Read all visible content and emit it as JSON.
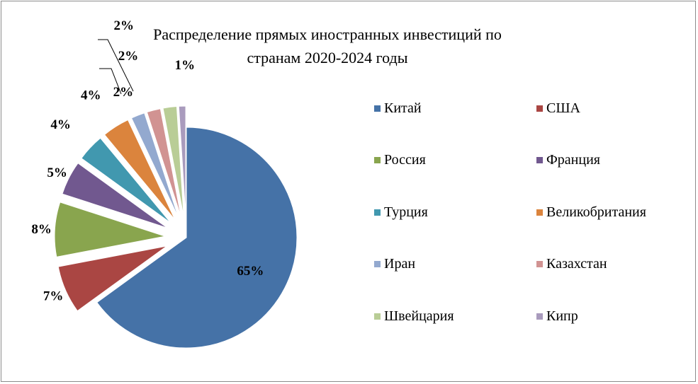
{
  "chart_data": {
    "type": "pie",
    "title": "Распределение прямых иностранных инвестиций по  странам  2020-2024 годы",
    "exploded": true,
    "legend_position": "right",
    "slices": [
      {
        "name": "Китай",
        "value": 65,
        "label": "65%",
        "color": "#4572A7"
      },
      {
        "name": "США",
        "value": 7,
        "label": "7%",
        "color": "#AA4643"
      },
      {
        "name": "Россия",
        "value": 8,
        "label": "8%",
        "color": "#89A54E"
      },
      {
        "name": "Франция",
        "value": 5,
        "label": "5%",
        "color": "#71588F"
      },
      {
        "name": "Турция",
        "value": 4,
        "label": "4%",
        "color": "#4198AF"
      },
      {
        "name": "Великобритания",
        "value": 4,
        "label": "4%",
        "color": "#DB843D"
      },
      {
        "name": "Иран",
        "value": 2,
        "label": "2%",
        "color": "#93A9CF"
      },
      {
        "name": "Казахстан",
        "value": 2,
        "label": "2%",
        "color": "#D19392"
      },
      {
        "name": "Швейцария",
        "value": 2,
        "label": "2%",
        "color": "#B9CD96"
      },
      {
        "name": "Кипр",
        "value": 1,
        "label": "1%",
        "color": "#A99BBD"
      }
    ]
  }
}
